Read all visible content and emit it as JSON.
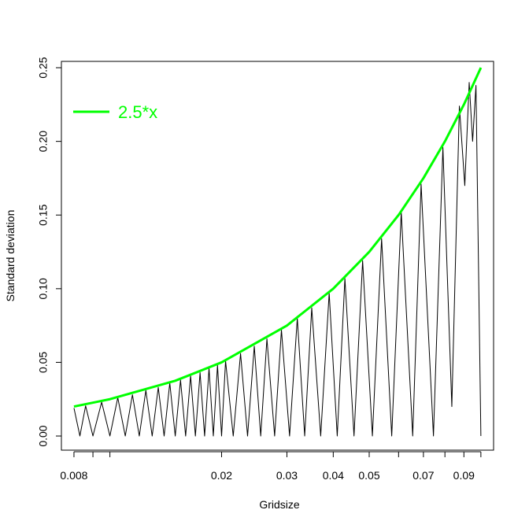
{
  "chart_data": {
    "type": "line",
    "xlabel": "Gridsize",
    "ylabel": "Standard deviation",
    "log_x": true,
    "legend": "topleft",
    "xlim": [
      0.0074,
      0.1082
    ],
    "ylim": [
      -0.0096,
      0.2543
    ],
    "xticks": [
      0.008,
      0.02,
      0.03,
      0.04,
      0.05,
      0.07,
      0.09
    ],
    "xticks_unlabeled": [
      0.009,
      0.01,
      0.06,
      0.08,
      0.1
    ],
    "yticks": [
      {
        "value": 0,
        "label": "0.00"
      },
      0.05,
      {
        "value": 0.1,
        "label": "0.10"
      },
      0.15,
      {
        "value": 0.2,
        "label": "0.20"
      },
      0.25
    ],
    "series": [
      {
        "color": "#000000",
        "width": 1,
        "x": [
          0.008,
          0.0083,
          0.0086,
          0.009,
          0.0095,
          0.01,
          0.0105,
          0.011,
          0.0115,
          0.012,
          0.0125,
          0.013,
          0.0135,
          0.014,
          0.0145,
          0.015,
          0.0155,
          0.016,
          0.0165,
          0.017,
          0.0175,
          0.018,
          0.0185,
          0.019,
          0.0195,
          0.02,
          0.0205,
          0.0215,
          0.0225,
          0.0235,
          0.0245,
          0.0255,
          0.0265,
          0.0278,
          0.029,
          0.0305,
          0.032,
          0.0335,
          0.035,
          0.037,
          0.039,
          0.041,
          0.043,
          0.0455,
          0.048,
          0.051,
          0.054,
          0.0575,
          0.061,
          0.0655,
          0.069,
          0.0745,
          0.079,
          0.0835,
          0.0875,
          0.0905,
          0.093,
          0.095,
          0.097,
          0.1
        ],
        "values": [
          0.019,
          0,
          0.0205,
          0,
          0.023,
          0,
          0.026,
          0,
          0.028,
          0,
          0.031,
          0,
          0.033,
          0,
          0.036,
          0,
          0.038,
          0,
          0.041,
          0,
          0.043,
          0,
          0.046,
          0,
          0.048,
          0,
          0.051,
          0,
          0.056,
          0,
          0.061,
          0,
          0.066,
          0,
          0.072,
          0,
          0.08,
          0,
          0.087,
          0,
          0.097,
          0,
          0.107,
          0,
          0.119,
          0,
          0.134,
          0,
          0.152,
          0,
          0.171,
          0,
          0.196,
          0.02,
          0.224,
          0.17,
          0.24,
          0.2,
          0.238,
          0
        ]
      },
      {
        "name": "2.5*x",
        "color": "#00ff00",
        "width": 3,
        "x": [
          0.008,
          0.01,
          0.015,
          0.02,
          0.03,
          0.04,
          0.05,
          0.06,
          0.07,
          0.08,
          0.09,
          0.1
        ],
        "values": [
          0.02,
          0.025,
          0.0375,
          0.05,
          0.075,
          0.1,
          0.125,
          0.15,
          0.175,
          0.2,
          0.225,
          0.25
        ]
      }
    ]
  }
}
